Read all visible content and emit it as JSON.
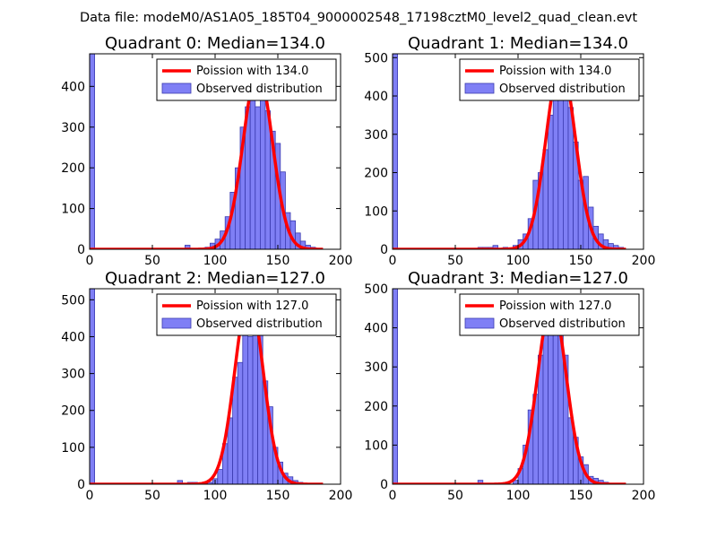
{
  "suptitle": "Data file: modeM0/AS1A05_185T04_9000002548_17198cztM0_level2_quad_clean.evt",
  "colors": {
    "bar_fill": "#7f7ff5",
    "bar_edge": "#3b3bb0",
    "fit_line": "#ff0000"
  },
  "chart_data": [
    {
      "type": "bar",
      "title": "Quadrant 0: Median=134.0",
      "legend": {
        "placement": "top-right",
        "line_label": "Poission with 134.0",
        "bar_label": "Observed distribution"
      },
      "xlim": [
        0,
        200
      ],
      "ylim": [
        0,
        480
      ],
      "xticks": [
        "0",
        "50",
        "100",
        "150",
        "200"
      ],
      "yticks": [
        "0",
        "100",
        "200",
        "300",
        "400"
      ],
      "bin_width": 4,
      "bins": [
        {
          "x": 0,
          "count": 480
        },
        {
          "x": 76,
          "count": 10
        },
        {
          "x": 92,
          "count": 5
        },
        {
          "x": 96,
          "count": 15
        },
        {
          "x": 100,
          "count": 25
        },
        {
          "x": 104,
          "count": 45
        },
        {
          "x": 108,
          "count": 80
        },
        {
          "x": 112,
          "count": 140
        },
        {
          "x": 116,
          "count": 200
        },
        {
          "x": 120,
          "count": 300
        },
        {
          "x": 124,
          "count": 350
        },
        {
          "x": 128,
          "count": 440
        },
        {
          "x": 132,
          "count": 350
        },
        {
          "x": 136,
          "count": 370
        },
        {
          "x": 140,
          "count": 340
        },
        {
          "x": 144,
          "count": 290
        },
        {
          "x": 148,
          "count": 260
        },
        {
          "x": 152,
          "count": 190
        },
        {
          "x": 156,
          "count": 90
        },
        {
          "x": 160,
          "count": 70
        },
        {
          "x": 164,
          "count": 40
        },
        {
          "x": 168,
          "count": 20
        },
        {
          "x": 172,
          "count": 10
        },
        {
          "x": 176,
          "count": 5
        }
      ],
      "poisson_mean": 134.0,
      "poisson_peak": 440
    },
    {
      "type": "bar",
      "title": "Quadrant 1: Median=134.0",
      "legend": {
        "placement": "top-right",
        "line_label": "Poission with 134.0",
        "bar_label": "Observed distribution"
      },
      "xlim": [
        0,
        200
      ],
      "ylim": [
        0,
        510
      ],
      "xticks": [
        "0",
        "50",
        "100",
        "150",
        "200"
      ],
      "yticks": [
        "0",
        "100",
        "200",
        "300",
        "400",
        "500"
      ],
      "bin_width": 4,
      "bins": [
        {
          "x": 0,
          "count": 510
        },
        {
          "x": 68,
          "count": 5
        },
        {
          "x": 72,
          "count": 5
        },
        {
          "x": 76,
          "count": 5
        },
        {
          "x": 80,
          "count": 10
        },
        {
          "x": 88,
          "count": 5
        },
        {
          "x": 96,
          "count": 10
        },
        {
          "x": 100,
          "count": 25
        },
        {
          "x": 104,
          "count": 40
        },
        {
          "x": 108,
          "count": 80
        },
        {
          "x": 112,
          "count": 180
        },
        {
          "x": 116,
          "count": 200
        },
        {
          "x": 120,
          "count": 260
        },
        {
          "x": 124,
          "count": 350
        },
        {
          "x": 128,
          "count": 460
        },
        {
          "x": 132,
          "count": 400
        },
        {
          "x": 136,
          "count": 460
        },
        {
          "x": 140,
          "count": 370
        },
        {
          "x": 144,
          "count": 280
        },
        {
          "x": 148,
          "count": 180
        },
        {
          "x": 152,
          "count": 190
        },
        {
          "x": 156,
          "count": 110
        },
        {
          "x": 160,
          "count": 60
        },
        {
          "x": 164,
          "count": 40
        },
        {
          "x": 168,
          "count": 25
        },
        {
          "x": 172,
          "count": 15
        },
        {
          "x": 176,
          "count": 10
        },
        {
          "x": 180,
          "count": 5
        }
      ],
      "poisson_mean": 134.0,
      "poisson_peak": 485
    },
    {
      "type": "bar",
      "title": "Quadrant 2: Median=127.0",
      "legend": {
        "placement": "top-right",
        "line_label": "Poission with 127.0",
        "bar_label": "Observed distribution"
      },
      "xlim": [
        0,
        200
      ],
      "ylim": [
        0,
        530
      ],
      "xticks": [
        "0",
        "50",
        "100",
        "150",
        "200"
      ],
      "yticks": [
        "0",
        "100",
        "200",
        "300",
        "400",
        "500"
      ],
      "bin_width": 4,
      "bins": [
        {
          "x": 0,
          "count": 530
        },
        {
          "x": 70,
          "count": 10
        },
        {
          "x": 78,
          "count": 5
        },
        {
          "x": 82,
          "count": 5
        },
        {
          "x": 90,
          "count": 5
        },
        {
          "x": 94,
          "count": 5
        },
        {
          "x": 98,
          "count": 15
        },
        {
          "x": 102,
          "count": 40
        },
        {
          "x": 106,
          "count": 110
        },
        {
          "x": 110,
          "count": 180
        },
        {
          "x": 114,
          "count": 290
        },
        {
          "x": 118,
          "count": 330
        },
        {
          "x": 122,
          "count": 480
        },
        {
          "x": 126,
          "count": 400
        },
        {
          "x": 130,
          "count": 510
        },
        {
          "x": 134,
          "count": 420
        },
        {
          "x": 138,
          "count": 280
        },
        {
          "x": 142,
          "count": 210
        },
        {
          "x": 146,
          "count": 100
        },
        {
          "x": 150,
          "count": 60
        },
        {
          "x": 154,
          "count": 30
        },
        {
          "x": 158,
          "count": 20
        },
        {
          "x": 162,
          "count": 10
        },
        {
          "x": 166,
          "count": 5
        }
      ],
      "poisson_mean": 127.0,
      "poisson_peak": 510
    },
    {
      "type": "bar",
      "title": "Quadrant 3: Median=127.0",
      "legend": {
        "placement": "top-right",
        "line_label": "Poission with 127.0",
        "bar_label": "Observed distribution"
      },
      "xlim": [
        0,
        200
      ],
      "ylim": [
        0,
        500
      ],
      "xticks": [
        "0",
        "50",
        "100",
        "150",
        "200"
      ],
      "yticks": [
        "0",
        "100",
        "200",
        "300",
        "400",
        "500"
      ],
      "bin_width": 4,
      "bins": [
        {
          "x": 0,
          "count": 500
        },
        {
          "x": 68,
          "count": 10
        },
        {
          "x": 96,
          "count": 10
        },
        {
          "x": 100,
          "count": 40
        },
        {
          "x": 104,
          "count": 100
        },
        {
          "x": 108,
          "count": 190
        },
        {
          "x": 112,
          "count": 230
        },
        {
          "x": 116,
          "count": 330
        },
        {
          "x": 120,
          "count": 400
        },
        {
          "x": 124,
          "count": 460
        },
        {
          "x": 128,
          "count": 420
        },
        {
          "x": 132,
          "count": 390
        },
        {
          "x": 136,
          "count": 330
        },
        {
          "x": 140,
          "count": 170
        },
        {
          "x": 144,
          "count": 120
        },
        {
          "x": 148,
          "count": 70
        },
        {
          "x": 152,
          "count": 50
        },
        {
          "x": 156,
          "count": 20
        },
        {
          "x": 160,
          "count": 15
        },
        {
          "x": 164,
          "count": 10
        },
        {
          "x": 168,
          "count": 5
        }
      ],
      "poisson_mean": 127.0,
      "poisson_peak": 465
    }
  ]
}
